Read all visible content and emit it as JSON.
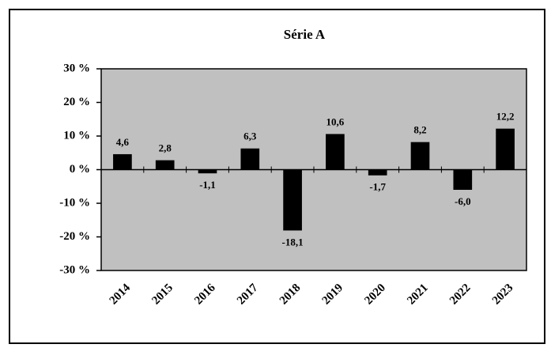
{
  "chart_data": {
    "type": "bar",
    "title": "Série  A",
    "categories": [
      "2014",
      "2015",
      "2016",
      "2017",
      "2018",
      "2019",
      "2020",
      "2021",
      "2022",
      "2023"
    ],
    "values": [
      4.6,
      2.8,
      -1.1,
      6.3,
      -18.1,
      10.6,
      -1.7,
      8.2,
      -6.0,
      12.2
    ],
    "value_labels": [
      "4,6",
      "2,8",
      "-1,1",
      "6,3",
      "-18,1",
      "10,6",
      "-1,7",
      "8,2",
      "-6,0",
      "12,2"
    ],
    "color": "#000000",
    "plot_background": "#c0c0c0",
    "ylim": [
      -30,
      30
    ],
    "yticks": [
      {
        "value": -30,
        "label": "-30 %"
      },
      {
        "value": -20,
        "label": "-20 %"
      },
      {
        "value": -10,
        "label": "-10 %"
      },
      {
        "value": 0,
        "label": "0 %"
      },
      {
        "value": 10,
        "label": "10 %"
      },
      {
        "value": 20,
        "label": "20 %"
      },
      {
        "value": 30,
        "label": "30 %"
      }
    ],
    "grid": false
  }
}
